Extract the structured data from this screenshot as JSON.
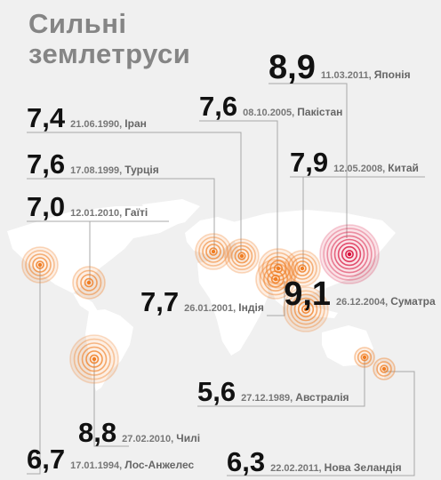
{
  "title": {
    "line1": "Сильні",
    "line2": "землетруси"
  },
  "colors": {
    "ring": "#f07d22",
    "ring_highlight": "#d8103a",
    "land": "#ffffff",
    "leader": "#a8a8a8"
  },
  "chart_data": {
    "type": "scatter",
    "title": "Сильні землетруси",
    "series": [
      {
        "name": "",
        "points": [
          {
            "magnitude": "8,9",
            "date": "11.03.2011",
            "place": "Японія"
          },
          {
            "magnitude": "7,6",
            "date": "08.10.2005",
            "place": "Пакістан"
          },
          {
            "magnitude": "7,4",
            "date": "21.06.1990",
            "place": "Іран"
          },
          {
            "magnitude": "7,6",
            "date": "17.08.1999",
            "place": "Турція"
          },
          {
            "magnitude": "7,9",
            "date": "12.05.2008",
            "place": "Китай"
          },
          {
            "magnitude": "7,0",
            "date": "12.01.2010",
            "place": "Гаїті"
          },
          {
            "magnitude": "7,7",
            "date": "26.01.2001",
            "place": "Індія"
          },
          {
            "magnitude": "9,1",
            "date": "26.12.2004",
            "place": "Суматра"
          },
          {
            "magnitude": "5,6",
            "date": "27.12.1989",
            "place": "Австралія"
          },
          {
            "magnitude": "8,8",
            "date": "27.02.2010",
            "place": "Чилі"
          },
          {
            "magnitude": "6,7",
            "date": "17.01.1994",
            "place": "Лос-Анжелес"
          },
          {
            "magnitude": "6,3",
            "date": "22.02.2011",
            "place": "Нова Зеландія"
          }
        ]
      }
    ]
  }
}
